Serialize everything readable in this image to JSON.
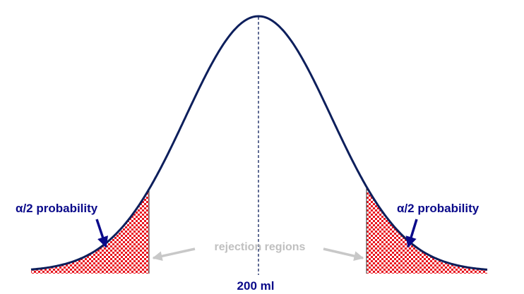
{
  "labels": {
    "left_prob": "α/2 probability",
    "right_prob": "α/2 probability",
    "rejection": "rejection regions",
    "center": "200 ml"
  },
  "colors": {
    "curve": "#0d1f5c",
    "label_blue": "#0a0a8a",
    "rejection_text": "#c0c0c0",
    "rejection_arrow": "#c8c8c8",
    "hatch_red": "#e8141e",
    "hatch_white": "#ffffff"
  }
}
